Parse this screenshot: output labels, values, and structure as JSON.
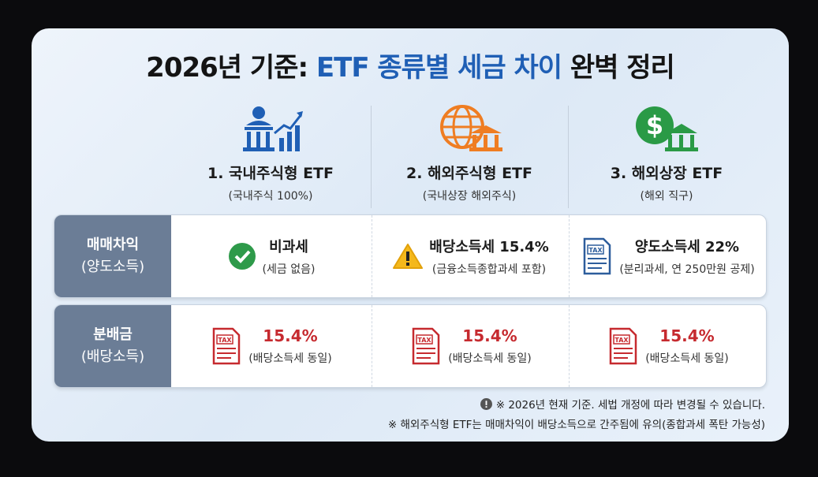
{
  "title": {
    "prefix": "2026년 기준: ",
    "highlight": "ETF 종류별 세금 차이",
    "suffix": " 완벽 정리"
  },
  "columns": [
    {
      "title": "1. 국내주식형 ETF",
      "subtitle": "(국내주식 100%)"
    },
    {
      "title": "2. 해외주식형 ETF",
      "subtitle": "(국내상장 해외주식)"
    },
    {
      "title": "3. 해외상장 ETF",
      "subtitle": "(해외 직구)"
    }
  ],
  "rows": [
    {
      "label": [
        "매매차익",
        "(양도소득)"
      ],
      "cells": [
        {
          "main": "비과세",
          "sub": "(세금 없음)"
        },
        {
          "main": "배당소득세 15.4%",
          "sub": "(금융소득종합과세 포함)"
        },
        {
          "main": "양도소득세 22%",
          "sub": "(분리과세, 연 250만원 공제)"
        }
      ]
    },
    {
      "label": [
        "분배금",
        "(배당소득)"
      ],
      "cells": [
        {
          "main": "15.4%",
          "sub": "(배당소득세 동일)"
        },
        {
          "main": "15.4%",
          "sub": "(배당소득세 동일)"
        },
        {
          "main": "15.4%",
          "sub": "(배당소득세 동일)"
        }
      ]
    }
  ],
  "tax_icon_label": "TAX",
  "notes": [
    "※ 2026년 현재 기준. 세법 개정에 따라 변경될 수 있습니다.",
    "※ 해외주식형 ETF는 매매차익이 배당소득으로 간주됨에 유의(종합과세 폭탄 가능성)"
  ]
}
